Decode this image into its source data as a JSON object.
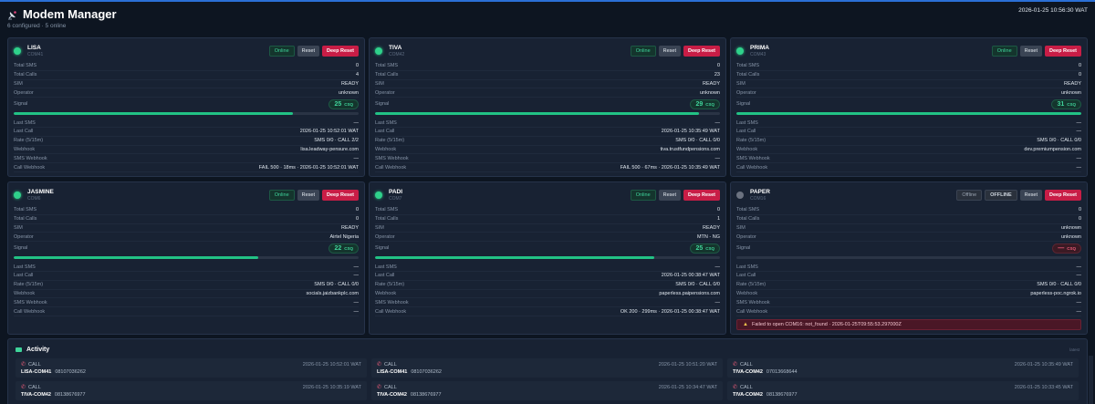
{
  "app": {
    "title": "Modem Manager",
    "subtitle": "6 configured · 5 online",
    "datetime": "2026-01-25 10:56:30 WAT"
  },
  "labels": {
    "total_sms": "Total SMS",
    "total_calls": "Total Calls",
    "sim": "SIM",
    "operator": "Operator",
    "signal": "Signal",
    "last_sms": "Last SMS",
    "last_call": "Last Call",
    "rate": "Rate (5/15m)",
    "webhook": "Webhook",
    "sms_webhook": "SMS Webhook",
    "call_webhook": "Call Webhook",
    "reset": "Reset",
    "deep_reset": "Deep Reset",
    "csq": "CSQ"
  },
  "colors": {
    "online": "#2fd18b",
    "offline": "#6b7280",
    "danger": "#c81d46",
    "accent": "#22c285"
  },
  "modems": [
    {
      "name": "LISA",
      "port": "COM41",
      "status": "Online",
      "total_sms": "0",
      "total_calls": "4",
      "sim": "READY",
      "operator": "unknown",
      "signal": "25",
      "signal_fraction": 0.81,
      "last_sms": "—",
      "last_call": "2026-01-25 10:52:01 WAT",
      "rate": "SMS 0/0 · CALL 2/2",
      "webhook": "lisa.leadway-pensure.com",
      "sms_webhook": "—",
      "call_webhook": "FAIL 500 · 18ms · 2026-01-25 10:52:01 WAT"
    },
    {
      "name": "TIVA",
      "port": "COM42",
      "status": "Online",
      "total_sms": "0",
      "total_calls": "23",
      "sim": "READY",
      "operator": "unknown",
      "signal": "29",
      "signal_fraction": 0.94,
      "last_sms": "—",
      "last_call": "2026-01-25 10:35:49 WAT",
      "rate": "SMS 0/0 · CALL 0/0",
      "webhook": "tiva.trustfundpensions.com",
      "sms_webhook": "—",
      "call_webhook": "FAIL 500 · 67ms · 2026-01-25 10:35:49 WAT"
    },
    {
      "name": "PRIMA",
      "port": "COM43",
      "status": "Online",
      "total_sms": "0",
      "total_calls": "0",
      "sim": "READY",
      "operator": "unknown",
      "signal": "31",
      "signal_fraction": 1.0,
      "last_sms": "—",
      "last_call": "—",
      "rate": "SMS 0/0 · CALL 0/0",
      "webhook": "dev.premiumpension.com",
      "sms_webhook": "—",
      "call_webhook": "—"
    },
    {
      "name": "JASMINE",
      "port": "COM6",
      "status": "Online",
      "total_sms": "0",
      "total_calls": "0",
      "sim": "READY",
      "operator": "Airtel Nigeria",
      "signal": "22",
      "signal_fraction": 0.71,
      "last_sms": "—",
      "last_call": "—",
      "rate": "SMS 0/0 · CALL 0/0",
      "webhook": "socials.jaizbankplc.com",
      "sms_webhook": "—",
      "call_webhook": "—"
    },
    {
      "name": "PADI",
      "port": "COM7",
      "status": "Online",
      "total_sms": "0",
      "total_calls": "1",
      "sim": "READY",
      "operator": "MTN - NG",
      "signal": "25",
      "signal_fraction": 0.81,
      "last_sms": "—",
      "last_call": "2026-01-25 00:38:47 WAT",
      "rate": "SMS 0/0 · CALL 0/0",
      "webhook": "paperless.paipensions.com",
      "sms_webhook": "—",
      "call_webhook": "OK 200 · 299ms · 2026-01-25 00:38:47 WAT"
    },
    {
      "name": "PAPER",
      "port": "COM16",
      "status": "Offline",
      "offline_tag": "OFFLINE",
      "total_sms": "0",
      "total_calls": "0",
      "sim": "unknown",
      "operator": "unknown",
      "signal": "—",
      "signal_fraction": 0,
      "last_sms": "—",
      "last_call": "—",
      "rate": "SMS 0/0 · CALL 0/0",
      "webhook": "paperless-poc.ngrok.io",
      "sms_webhook": "—",
      "call_webhook": "—",
      "error": "Failed to open COM16: not_found · 2026-01-25T09:55:53.297000Z"
    }
  ],
  "activity": {
    "title": "Activity",
    "tag": "latest",
    "items": [
      {
        "type": "CALL",
        "time": "2026-01-25 10:52:01 WAT",
        "source": "LISA-COM41",
        "number": "08107036262"
      },
      {
        "type": "CALL",
        "time": "2026-01-25 10:51:20 WAT",
        "source": "LISA-COM41",
        "number": "08107036262"
      },
      {
        "type": "CALL",
        "time": "2026-01-25 10:35:49 WAT",
        "source": "TIVA-COM42",
        "number": "07013668644"
      },
      {
        "type": "CALL",
        "time": "2026-01-25 10:35:19 WAT",
        "source": "TIVA-COM42",
        "number": "08138676977"
      },
      {
        "type": "CALL",
        "time": "2026-01-25 10:34:47 WAT",
        "source": "TIVA-COM42",
        "number": "08138676977"
      },
      {
        "type": "CALL",
        "time": "2026-01-25 10:33:45 WAT",
        "source": "TIVA-COM42",
        "number": "08138676977"
      }
    ]
  }
}
